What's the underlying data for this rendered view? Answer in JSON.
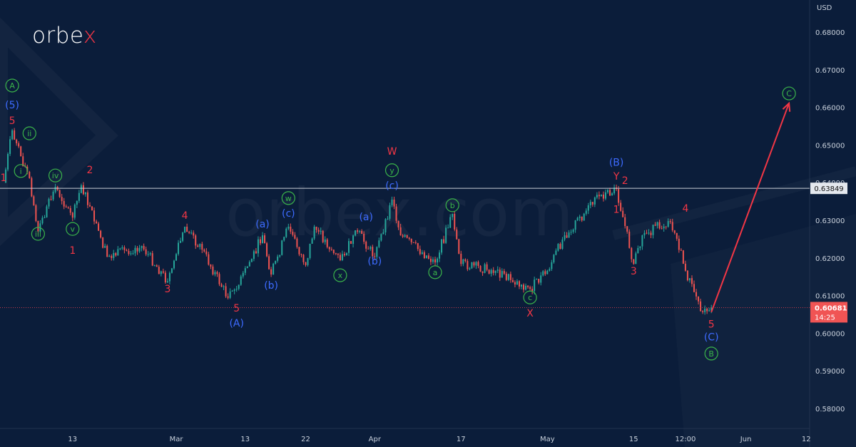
{
  "brand": {
    "logo_main": "orbe",
    "logo_accent": "x",
    "watermark": "orbex.com"
  },
  "colors": {
    "background": "#0b1d3a",
    "up": "#26a69a",
    "down": "#ef5350",
    "red_label": "#f23645",
    "blue_label": "#3d6bff",
    "green_label": "#3bb54a",
    "projection": "#f23645",
    "level_line": "#c9ced6"
  },
  "chart_data": {
    "type": "candlestick",
    "currency": "USD",
    "y_ticks": [
      "0.68000",
      "0.67000",
      "0.66000",
      "0.65000",
      "0.64000",
      "0.63000",
      "0.62000",
      "0.61000",
      "0.60000",
      "0.59000",
      "0.58000"
    ],
    "ylim": [
      0.575,
      0.685
    ],
    "x_ticks": [
      {
        "label": "13",
        "date": "Feb 13"
      },
      {
        "label": "Mar",
        "date": "Mar 1"
      },
      {
        "label": "13",
        "date": "Mar 13"
      },
      {
        "label": "22",
        "date": "Mar 22"
      },
      {
        "label": "Apr",
        "date": "Apr 3"
      },
      {
        "label": "17",
        "date": "Apr 17"
      },
      {
        "label": "May",
        "date": "May 1"
      },
      {
        "label": "15",
        "date": "May 15"
      },
      {
        "label": "12:00",
        "date": "May 23"
      },
      {
        "label": "Jun",
        "date": "Jun 1"
      },
      {
        "label": "12",
        "date": "Jun 12"
      }
    ],
    "price_path": [
      {
        "x": "Feb 1",
        "y": 0.64
      },
      {
        "x": "Feb 2",
        "y": 0.6539
      },
      {
        "x": "Feb 3",
        "y": 0.647
      },
      {
        "x": "Feb 6",
        "y": 0.6412
      },
      {
        "x": "Feb 7",
        "y": 0.627
      },
      {
        "x": "Feb 9",
        "y": 0.6389
      },
      {
        "x": "Feb 13",
        "y": 0.6307
      },
      {
        "x": "Feb 14",
        "y": 0.6393
      },
      {
        "x": "Feb 17",
        "y": 0.6203
      },
      {
        "x": "Feb 23",
        "y": 0.6232
      },
      {
        "x": "Feb 28",
        "y": 0.6138
      },
      {
        "x": "Mar 2",
        "y": 0.6283
      },
      {
        "x": "Mar 6",
        "y": 0.6222
      },
      {
        "x": "Mar 9",
        "y": 0.6094
      },
      {
        "x": "Mar 10",
        "y": 0.6118
      },
      {
        "x": "Mar 15",
        "y": 0.626
      },
      {
        "x": "Mar 16",
        "y": 0.6156
      },
      {
        "x": "Mar 20",
        "y": 0.6283
      },
      {
        "x": "Mar 22",
        "y": 0.6181
      },
      {
        "x": "Mar 23",
        "y": 0.6283
      },
      {
        "x": "Mar 28",
        "y": 0.6194
      },
      {
        "x": "Mar 30",
        "y": 0.627
      },
      {
        "x": "Apr 3",
        "y": 0.6203
      },
      {
        "x": "Apr 5",
        "y": 0.6355
      },
      {
        "x": "Apr 6",
        "y": 0.626
      },
      {
        "x": "Apr 12",
        "y": 0.6188
      },
      {
        "x": "Apr 14",
        "y": 0.6317
      },
      {
        "x": "Apr 17",
        "y": 0.6184
      },
      {
        "x": "Apr 21",
        "y": 0.6166
      },
      {
        "x": "Apr 27",
        "y": 0.6118
      },
      {
        "x": "May 1",
        "y": 0.6166
      },
      {
        "x": "May 3",
        "y": 0.626
      },
      {
        "x": "May 9",
        "y": 0.6364
      },
      {
        "x": "May 11",
        "y": 0.6383
      },
      {
        "x": "May 15",
        "y": 0.6184
      },
      {
        "x": "May 16",
        "y": 0.626
      },
      {
        "x": "May 19",
        "y": 0.6298
      },
      {
        "x": "May 22",
        "y": 0.6251
      },
      {
        "x": "May 23",
        "y": 0.6166
      },
      {
        "x": "May 25",
        "y": 0.6056
      },
      {
        "x": "May 26",
        "y": 0.6068
      }
    ],
    "horizontal_level": {
      "value": "0.63849",
      "price": 0.63849
    },
    "last_price": {
      "value": "0.60681",
      "price": 0.60681,
      "countdown": "14:25"
    },
    "projection": {
      "from": {
        "x": "May 26",
        "y": 0.6056
      },
      "to": {
        "x": "Jun 8",
        "y": 0.6611
      }
    },
    "wave_labels": [
      {
        "text": "A",
        "style": "green-circle",
        "x": "Feb 2",
        "y": 0.6658
      },
      {
        "text": "(5)",
        "style": "blue",
        "x": "Feb 2",
        "y": 0.6605
      },
      {
        "text": "5",
        "style": "red",
        "x": "Feb 2",
        "y": 0.6563
      },
      {
        "text": "ii",
        "style": "green-circle",
        "x": "Feb 6",
        "y": 0.6531
      },
      {
        "text": "i",
        "style": "green-circle",
        "x": "Feb 3",
        "y": 0.6431
      },
      {
        "text": "1",
        "style": "red",
        "x": "Feb 1",
        "y": 0.6412
      },
      {
        "text": "iii",
        "style": "green-circle",
        "x": "Feb 7",
        "y": 0.6264
      },
      {
        "text": "iv",
        "style": "green-circle",
        "x": "Feb 9",
        "y": 0.6419
      },
      {
        "text": "v",
        "style": "green-circle",
        "x": "Feb 13",
        "y": 0.6277
      },
      {
        "text": "2",
        "style": "red",
        "x": "Feb 15",
        "y": 0.6433
      },
      {
        "text": "1",
        "style": "red",
        "x": "Feb 13",
        "y": 0.6219
      },
      {
        "text": "3",
        "style": "red",
        "x": "Feb 28",
        "y": 0.6116
      },
      {
        "text": "4",
        "style": "red",
        "x": "Mar 2",
        "y": 0.6311
      },
      {
        "text": "5",
        "style": "red",
        "x": "Mar 10",
        "y": 0.6065
      },
      {
        "text": "(A)",
        "style": "blue",
        "x": "Mar 10",
        "y": 0.6025
      },
      {
        "text": "(a)",
        "style": "blue",
        "x": "Mar 15",
        "y": 0.6289
      },
      {
        "text": "(b)",
        "style": "blue",
        "x": "Mar 16",
        "y": 0.6126
      },
      {
        "text": "w",
        "style": "green-circle",
        "x": "Mar 20",
        "y": 0.6359
      },
      {
        "text": "(c)",
        "style": "blue",
        "x": "Mar 20",
        "y": 0.6317
      },
      {
        "text": "x",
        "style": "green-circle",
        "x": "Mar 28",
        "y": 0.6154
      },
      {
        "text": "(a)",
        "style": "blue",
        "x": "Mar 31",
        "y": 0.6308
      },
      {
        "text": "(b)",
        "style": "blue",
        "x": "Apr 3",
        "y": 0.619
      },
      {
        "text": "W",
        "style": "red",
        "x": "Apr 5",
        "y": 0.6482
      },
      {
        "text": "y",
        "style": "green-circle",
        "x": "Apr 5",
        "y": 0.6433
      },
      {
        "text": "(c)",
        "style": "blue",
        "x": "Apr 5",
        "y": 0.6391
      },
      {
        "text": "a",
        "style": "green-circle",
        "x": "Apr 12",
        "y": 0.6162
      },
      {
        "text": "b",
        "style": "green-circle",
        "x": "Apr 14",
        "y": 0.634
      },
      {
        "text": "c",
        "style": "green-circle",
        "x": "Apr 27",
        "y": 0.6095
      },
      {
        "text": "X",
        "style": "red",
        "x": "Apr 27",
        "y": 0.6052
      },
      {
        "text": "(B)",
        "style": "blue",
        "x": "May 11",
        "y": 0.6452
      },
      {
        "text": "Y",
        "style": "red",
        "x": "May 11",
        "y": 0.6416
      },
      {
        "text": "2",
        "style": "red",
        "x": "May 12",
        "y": 0.6404
      },
      {
        "text": "1",
        "style": "red",
        "x": "May 11",
        "y": 0.6327
      },
      {
        "text": "3",
        "style": "red",
        "x": "May 15",
        "y": 0.6164
      },
      {
        "text": "4",
        "style": "red",
        "x": "May 23",
        "y": 0.633
      },
      {
        "text": "5",
        "style": "red",
        "x": "May 26",
        "y": 0.6023
      },
      {
        "text": "(C)",
        "style": "blue",
        "x": "May 26",
        "y": 0.5988
      },
      {
        "text": "B",
        "style": "green-circle",
        "x": "May 26",
        "y": 0.5946
      },
      {
        "text": "C",
        "style": "green-circle",
        "x": "Jun 8",
        "y": 0.6637
      }
    ]
  }
}
